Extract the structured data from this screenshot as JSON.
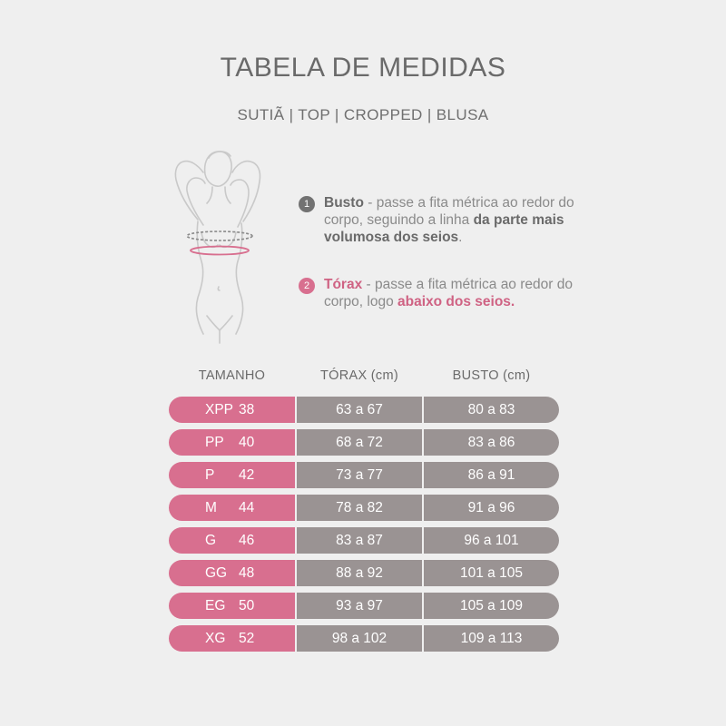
{
  "header": {
    "title": "TABELA DE MEDIDAS",
    "subtitle": "SUTIÃ | TOP | CROPPED | BLUSA"
  },
  "illustration": {
    "icon": "female-torso-measurement-icon"
  },
  "instructions": [
    {
      "number": "1",
      "label": "Busto",
      "text_a": " - passe a fita métrica ao redor do corpo, seguindo a linha ",
      "emphasis": "da parte mais volumosa dos seios",
      "text_b": ".",
      "color": "#727272"
    },
    {
      "number": "2",
      "label": "Tórax",
      "text_a": " - passe a fita métrica ao redor do corpo, logo ",
      "emphasis": "abaixo dos seios.",
      "text_b": "",
      "color": "#d86f8f"
    }
  ],
  "table": {
    "headers": [
      "TAMANHO",
      "TÓRAX (cm)",
      "BUSTO (cm)"
    ],
    "rows": [
      {
        "size": "XPP",
        "number": "38",
        "torax": "63 a 67",
        "busto": "80 a 83"
      },
      {
        "size": "PP",
        "number": "40",
        "torax": "68 a 72",
        "busto": "83 a 86"
      },
      {
        "size": "P",
        "number": "42",
        "torax": "73 a 77",
        "busto": "86 a 91"
      },
      {
        "size": "M",
        "number": "44",
        "torax": "78 a 82",
        "busto": "91 a 96"
      },
      {
        "size": "G",
        "number": "46",
        "torax": "83 a 87",
        "busto": "96 a 101"
      },
      {
        "size": "GG",
        "number": "48",
        "torax": "88 a 92",
        "busto": "101 a 105"
      },
      {
        "size": "EG",
        "number": "50",
        "torax": "93 a 97",
        "busto": "105 a 109"
      },
      {
        "size": "XG",
        "number": "52",
        "torax": "98 a 102",
        "busto": "109 a 113"
      }
    ]
  },
  "colors": {
    "background": "#efefef",
    "pink": "#d86f8f",
    "gray": "#9a9393",
    "text": "#6a6a6a"
  }
}
